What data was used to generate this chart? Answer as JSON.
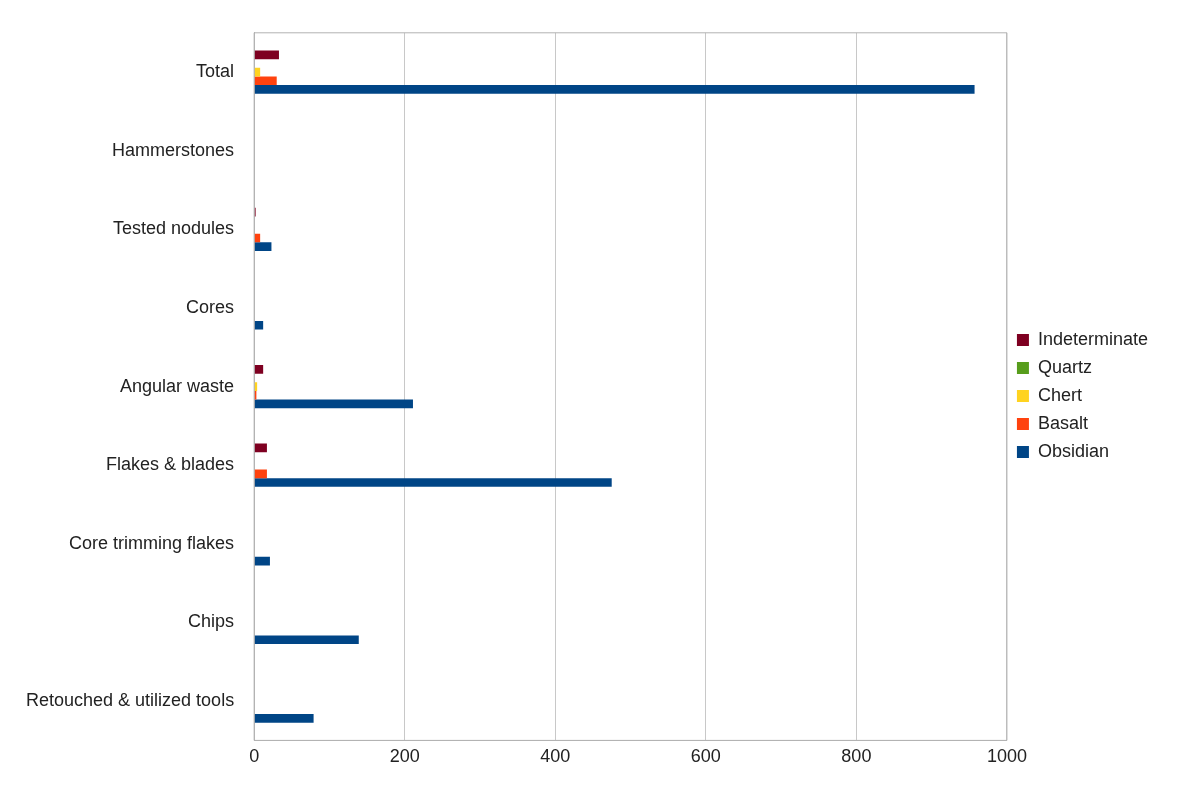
{
  "chart_data": {
    "type": "bar",
    "orientation": "horizontal",
    "categories": [
      "Total",
      "Hammerstones",
      "Tested nodules",
      "Cores",
      "Angular waste",
      "Flakes & blades",
      "Core trimming flakes",
      "Chips",
      "Retouched & utilized tools"
    ],
    "series": [
      {
        "name": "Indeterminate",
        "color": "#7e0021",
        "values": [
          33,
          0,
          2,
          0,
          12,
          17,
          0,
          0,
          0
        ]
      },
      {
        "name": "Quartz",
        "color": "#579d1c",
        "values": [
          0,
          0,
          0,
          0,
          0,
          0,
          0,
          0,
          0
        ]
      },
      {
        "name": "Chert",
        "color": "#ffd320",
        "values": [
          8,
          0,
          0,
          0,
          4,
          0,
          0,
          0,
          0
        ]
      },
      {
        "name": "Basalt",
        "color": "#ff420e",
        "values": [
          30,
          0,
          8,
          0,
          3,
          17,
          0,
          0,
          0
        ]
      },
      {
        "name": "Obsidian",
        "color": "#004586",
        "values": [
          957,
          0,
          23,
          12,
          211,
          475,
          21,
          139,
          79
        ]
      }
    ],
    "xlim": [
      0,
      1000
    ],
    "xticks": [
      0,
      200,
      400,
      600,
      800,
      1000
    ],
    "grid": "x",
    "legend": "right"
  }
}
